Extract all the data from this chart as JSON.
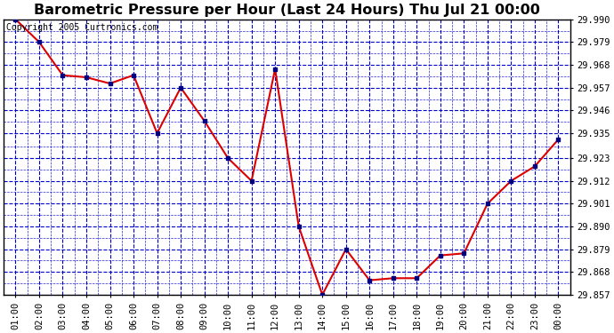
{
  "title": "Barometric Pressure per Hour (Last 24 Hours) Thu Jul 21 00:00",
  "copyright": "Copyright 2005 Curtronics.com",
  "x_labels": [
    "01:00",
    "02:00",
    "03:00",
    "04:00",
    "05:00",
    "06:00",
    "07:00",
    "08:00",
    "09:00",
    "10:00",
    "11:00",
    "12:00",
    "13:00",
    "14:00",
    "15:00",
    "16:00",
    "17:00",
    "18:00",
    "19:00",
    "20:00",
    "21:00",
    "22:00",
    "23:00",
    "00:00"
  ],
  "y_values": [
    29.99,
    29.979,
    29.963,
    29.962,
    29.959,
    29.963,
    29.935,
    29.957,
    29.941,
    29.923,
    29.912,
    29.966,
    29.89,
    29.857,
    29.879,
    29.864,
    29.865,
    29.865,
    29.876,
    29.877,
    29.901,
    29.912,
    29.919,
    29.932
  ],
  "y_min": 29.857,
  "y_max": 29.99,
  "y_ticks": [
    29.857,
    29.868,
    29.879,
    29.89,
    29.901,
    29.912,
    29.923,
    29.935,
    29.946,
    29.957,
    29.968,
    29.979,
    29.99
  ],
  "line_color": "#dd0000",
  "marker_color": "#000080",
  "bg_color": "#ffffff",
  "plot_bg_color": "#ffffff",
  "grid_color": "#0000cc",
  "title_color": "#000000",
  "axis_color": "#000000",
  "border_color": "#000000",
  "title_fontsize": 11.5,
  "tick_fontsize": 7.5,
  "copyright_fontsize": 7
}
